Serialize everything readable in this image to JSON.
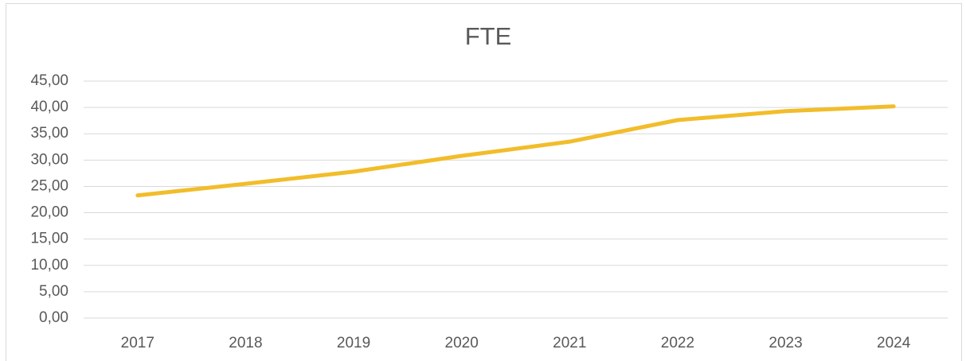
{
  "chart_data": {
    "type": "line",
    "title": "FTE",
    "categories": [
      "2017",
      "2018",
      "2019",
      "2020",
      "2021",
      "2022",
      "2023",
      "2024"
    ],
    "series": [
      {
        "name": "FTE",
        "color": "#f2bd2b",
        "values": [
          23.3,
          25.5,
          27.8,
          30.8,
          33.5,
          37.6,
          39.3,
          40.2
        ]
      }
    ],
    "ylim": [
      0,
      45
    ],
    "yticks": [
      {
        "value": 0,
        "label": "0,00"
      },
      {
        "value": 5,
        "label": "5,00"
      },
      {
        "value": 10,
        "label": "10,00"
      },
      {
        "value": 15,
        "label": "15,00"
      },
      {
        "value": 20,
        "label": "20,00"
      },
      {
        "value": 25,
        "label": "25,00"
      },
      {
        "value": 30,
        "label": "30,00"
      },
      {
        "value": 35,
        "label": "35,00"
      },
      {
        "value": 40,
        "label": "40,00"
      },
      {
        "value": 45,
        "label": "45,00"
      }
    ],
    "grid": true
  }
}
